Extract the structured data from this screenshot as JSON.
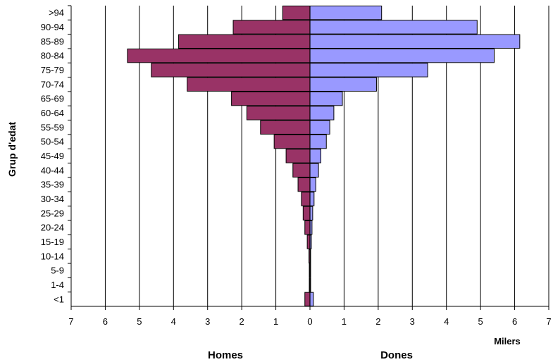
{
  "chart_data": {
    "type": "bar",
    "orientation": "horizontal",
    "title": "",
    "ylabel": "Grup d'edat",
    "unit_label": "Milers",
    "xlim": [
      -7,
      7
    ],
    "x_ticks": [
      "7",
      "6",
      "5",
      "4",
      "3",
      "2",
      "1",
      "0",
      "1",
      "2",
      "3",
      "4",
      "5",
      "6",
      "7"
    ],
    "grid": "vertical",
    "categories": [
      ">94",
      "90-94",
      "85-89",
      "80-84",
      "75-79",
      "70-74",
      "65-69",
      "60-64",
      "55-59",
      "50-54",
      "45-49",
      "40-44",
      "35-39",
      "30-34",
      "25-29",
      "20-24",
      "15-19",
      "10-14",
      "5-9",
      "1-4",
      "<1"
    ],
    "series": [
      {
        "name": "Homes",
        "color": "#993366",
        "values": [
          0.8,
          2.25,
          3.85,
          5.35,
          4.65,
          3.6,
          2.3,
          1.85,
          1.45,
          1.05,
          0.7,
          0.5,
          0.35,
          0.25,
          0.2,
          0.15,
          0.08,
          0.03,
          0.02,
          0.02,
          0.15
        ]
      },
      {
        "name": "Dones",
        "color": "#9999ff",
        "values": [
          2.1,
          4.9,
          6.15,
          5.4,
          3.45,
          1.95,
          0.95,
          0.7,
          0.58,
          0.48,
          0.32,
          0.25,
          0.17,
          0.12,
          0.08,
          0.06,
          0.04,
          0.02,
          0.02,
          0.02,
          0.1
        ]
      }
    ]
  }
}
